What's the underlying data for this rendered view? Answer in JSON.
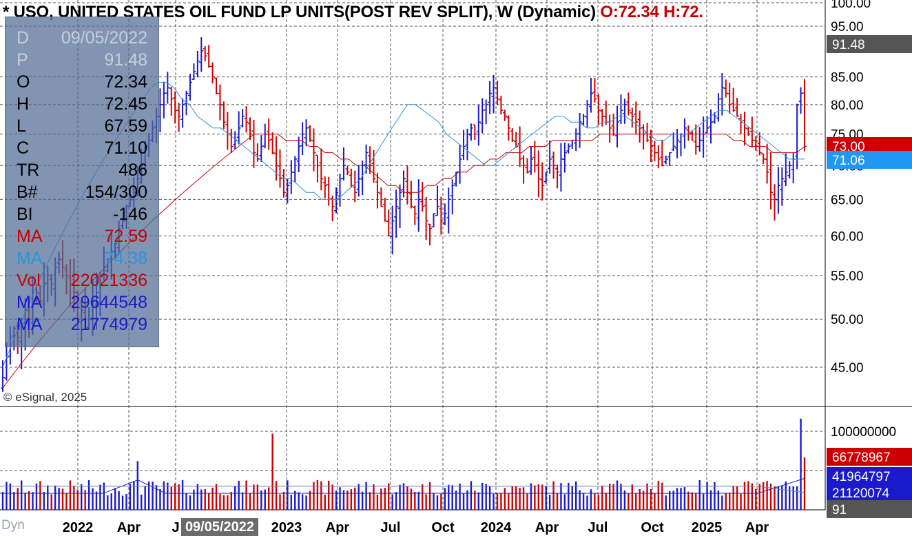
{
  "title": {
    "text": "* USO, UNITED STATES OIL FUND LP UNITS(POST REV SPLIT), W (Dynamic)",
    "ohl_text": "O:72.34 H:72."
  },
  "info_panel": {
    "rows": [
      {
        "key": "D",
        "value": "09/05/2022",
        "color": "#c6cdd8"
      },
      {
        "key": "P",
        "value": "91.48",
        "color": "#c6cdd8"
      },
      {
        "key": "O",
        "value": "72.34",
        "color": "#000000"
      },
      {
        "key": "H",
        "value": "72.45",
        "color": "#000000"
      },
      {
        "key": "L",
        "value": "67.59",
        "color": "#000000"
      },
      {
        "key": "C",
        "value": "71.10",
        "color": "#000000"
      },
      {
        "key": "TR",
        "value": "486",
        "color": "#000000"
      },
      {
        "key": "B#",
        "value": "154/300",
        "color": "#000000"
      },
      {
        "key": "BI",
        "value": "-146",
        "color": "#000000"
      },
      {
        "key": "MA",
        "value": "72.59",
        "color": "#cc0000"
      },
      {
        "key": "MA",
        "value": "74.38",
        "color": "#2a93e0"
      },
      {
        "key": "Vol",
        "value": "22021336",
        "color": "#cc0000"
      },
      {
        "key": "MA",
        "value": "29644548",
        "color": "#1a1acc"
      },
      {
        "key": "MA",
        "value": "21774979",
        "color": "#1a1acc"
      }
    ]
  },
  "copyright": "© eSignal, 2025",
  "dyn_label": "Dyn",
  "cursor_date": "09/05/2022",
  "colors": {
    "up_bar": "#1a1acc",
    "down_bar": "#cc0000",
    "ma_slow": "#cc0000",
    "ma_fast": "#2a93e0",
    "vol_ma1": "#1a1acc",
    "vol_ma2": "#5a7fb8",
    "grid": "#555555"
  },
  "chart_data": {
    "type": "ohlc",
    "price_axis": {
      "ticks": [
        "100.00",
        "95.00",
        "85.00",
        "80.00",
        "75.00",
        "70.00",
        "65.00",
        "60.00",
        "55.00",
        "50.00",
        "45.00"
      ],
      "tick_values": [
        100,
        95,
        85,
        80,
        75,
        70,
        65,
        60,
        55,
        50,
        45
      ],
      "log_scale": true,
      "markers": [
        {
          "label": "91.48",
          "value": 91.48,
          "bg": "#555555",
          "fg": "#ffffff"
        },
        {
          "label": "73.00",
          "value": 73.0,
          "bg": "#cc0000",
          "fg": "#ffffff"
        },
        {
          "label": "71.06",
          "value": 71.06,
          "bg": "#2196f3",
          "fg": "#ffffff"
        }
      ]
    },
    "volume_axis": {
      "ticks": [
        "100000000"
      ],
      "tick_values": [
        100000000
      ],
      "markers": [
        {
          "label": "66778967",
          "value": 66778967,
          "bg": "#cc0000",
          "fg": "#ffffff"
        },
        {
          "label": "41964797",
          "value": 41964797,
          "bg": "#1a1acc",
          "fg": "#ffffff"
        },
        {
          "label": "21120074",
          "value": 21120074,
          "bg": "#1a1acc",
          "fg": "#ffffff"
        },
        {
          "label": "91",
          "value": 0,
          "bg": "#555555",
          "fg": "#ffffff"
        }
      ]
    },
    "x_labels": [
      "2022",
      "Apr",
      "J",
      "2023",
      "Apr",
      "Jul",
      "Oct",
      "2024",
      "Apr",
      "Jul",
      "Oct",
      "2025",
      "Apr"
    ],
    "bars_weekly_close": [
      44,
      46,
      48,
      49,
      48,
      50,
      51,
      50,
      52,
      53,
      52,
      54,
      55,
      54,
      56,
      57,
      56,
      55,
      54,
      53,
      50,
      51,
      49,
      50,
      52,
      53,
      55,
      56,
      57,
      58,
      59,
      61,
      62,
      64,
      65,
      66,
      68,
      70,
      73,
      74,
      76,
      78,
      80,
      82,
      83,
      81,
      79,
      78,
      80,
      82,
      84,
      86,
      88,
      90,
      89,
      87,
      85,
      82,
      80,
      77,
      75,
      73,
      74,
      76,
      78,
      77,
      75,
      72,
      71,
      73,
      75,
      74,
      72,
      70,
      68,
      66,
      67,
      69,
      71,
      73,
      75,
      76,
      74,
      72,
      70,
      68,
      67,
      65,
      64,
      66,
      68,
      70,
      69,
      67,
      66,
      68,
      70,
      72,
      70,
      68,
      66,
      64,
      62,
      60,
      62,
      64,
      66,
      68,
      66,
      64,
      63,
      65,
      64,
      62,
      61,
      63,
      64,
      62,
      63,
      65,
      67,
      69,
      71,
      73,
      75,
      76,
      75,
      77,
      79,
      80,
      82,
      83,
      81,
      79,
      78,
      76,
      74,
      73,
      71,
      70,
      69,
      71,
      70,
      68,
      67,
      69,
      71,
      70,
      69,
      71,
      72,
      73,
      74,
      75,
      77,
      78,
      80,
      82,
      81,
      79,
      78,
      77,
      76,
      75,
      77,
      79,
      80,
      79,
      78,
      77,
      76,
      75,
      74,
      73,
      72,
      71,
      70,
      71,
      72,
      73,
      74,
      75,
      76,
      75,
      74,
      73,
      74,
      75,
      76,
      77,
      78,
      81,
      83,
      82,
      80,
      79,
      78,
      77,
      76,
      75,
      74,
      73,
      72,
      71,
      69,
      66,
      65,
      67,
      68,
      69,
      70,
      71,
      80,
      82,
      73
    ],
    "ma_slow": [
      43,
      44,
      45,
      46,
      47,
      48,
      49,
      50,
      51,
      52,
      53,
      54,
      55,
      56,
      57,
      58,
      59,
      60,
      61,
      62,
      63,
      64,
      65,
      66,
      67,
      68,
      69,
      70,
      71,
      72,
      73,
      74,
      75,
      75,
      75,
      75,
      74,
      74,
      74,
      73,
      73,
      72,
      72,
      71,
      71,
      70,
      70,
      69,
      68,
      67,
      67,
      66,
      66,
      66,
      67,
      67,
      68,
      68,
      69,
      69,
      70,
      70,
      71,
      71,
      72,
      72,
      72,
      73,
      73,
      73,
      74,
      74,
      74,
      74,
      74,
      74,
      75,
      75,
      75,
      75,
      75,
      75,
      75,
      75,
      75,
      75,
      75,
      75,
      75,
      75,
      75,
      75,
      75,
      74,
      74,
      73,
      73,
      73,
      72,
      72,
      72,
      72,
      73
    ],
    "ma_fast": [
      45,
      47,
      49,
      51,
      53,
      55,
      57,
      59,
      61,
      63,
      65,
      67,
      69,
      71,
      73,
      75,
      77,
      79,
      81,
      83,
      84,
      84,
      83,
      81,
      80,
      78,
      77,
      76,
      76,
      75,
      74,
      73,
      72,
      71,
      70,
      69,
      68,
      68,
      67,
      66,
      66,
      65,
      65,
      65,
      66,
      67,
      68,
      70,
      72,
      74,
      76,
      78,
      80,
      80,
      79,
      78,
      77,
      75,
      74,
      73,
      72,
      71,
      70,
      70,
      71,
      72,
      73,
      74,
      75,
      76,
      77,
      78,
      78,
      77,
      77,
      76,
      76,
      77,
      77,
      78,
      78,
      77,
      76,
      75,
      74,
      74,
      75,
      75,
      75,
      76,
      77,
      78,
      79,
      79,
      78,
      77,
      76,
      75,
      74,
      73,
      72,
      71,
      71,
      71
    ],
    "volume_ma1_level": 30000000,
    "volume_ma2_level": 21000000
  }
}
